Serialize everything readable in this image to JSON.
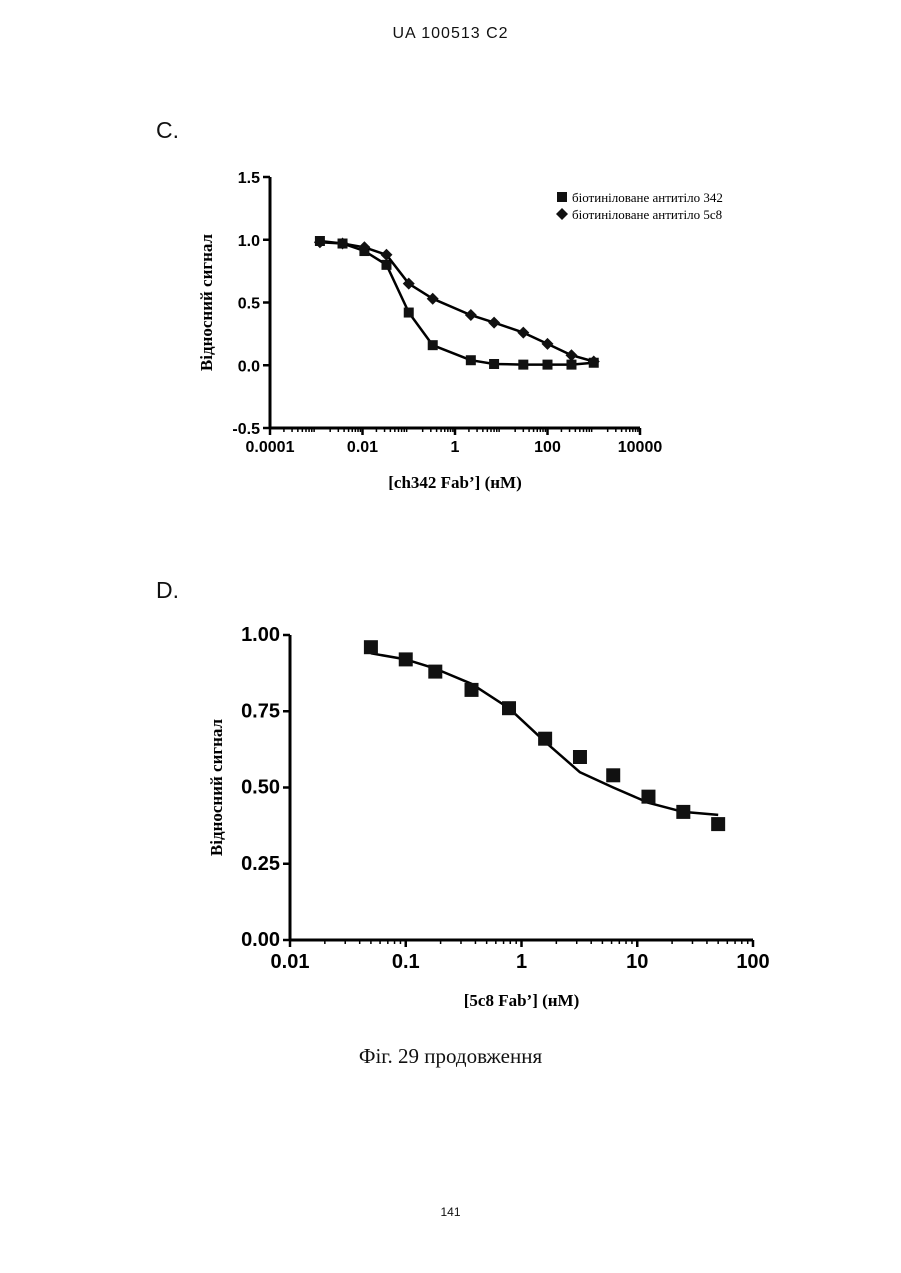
{
  "page": {
    "header": "UA   100513   C2",
    "caption": "Фіг. 29 продовження",
    "page_number": "141"
  },
  "chart_data": [
    {
      "panel": "C.",
      "type": "line",
      "x_scale": "log",
      "xlim": [
        0.0001,
        10000
      ],
      "ylim": [
        -0.5,
        1.5
      ],
      "x_ticks": [
        0.0001,
        0.01,
        1,
        100,
        10000
      ],
      "x_tick_labels": [
        "0.0001",
        "0.01",
        "1",
        "100",
        "10000"
      ],
      "y_ticks": [
        -0.5,
        0.0,
        0.5,
        1.0,
        1.5
      ],
      "y_tick_labels": [
        "-0.5",
        "0.0",
        "0.5",
        "1.0",
        "1.5"
      ],
      "xlabel": "[ch342 Fab’] (нМ)",
      "ylabel": "Відносний сигнал",
      "legend_position": "top-right",
      "series": [
        {
          "name": "біотиніловане антитіло 342",
          "marker": "square",
          "x": [
            0.0012,
            0.0037,
            0.011,
            0.033,
            0.1,
            0.33,
            2.2,
            7,
            30,
            100,
            330,
            1000
          ],
          "y": [
            0.99,
            0.97,
            0.91,
            0.8,
            0.42,
            0.16,
            0.04,
            0.01,
            0.005,
            0.005,
            0.005,
            0.02
          ]
        },
        {
          "name": "біотиніловане антитіло 5c8",
          "marker": "diamond",
          "x": [
            0.0012,
            0.0037,
            0.011,
            0.033,
            0.1,
            0.33,
            2.2,
            7,
            30,
            100,
            330,
            1000
          ],
          "y": [
            0.98,
            0.97,
            0.94,
            0.88,
            0.65,
            0.53,
            0.4,
            0.34,
            0.26,
            0.17,
            0.08,
            0.03
          ]
        }
      ]
    },
    {
      "panel": "D.",
      "type": "scatter",
      "x_scale": "log",
      "xlim": [
        0.01,
        100
      ],
      "ylim": [
        0.0,
        1.0
      ],
      "x_ticks": [
        0.01,
        0.1,
        1,
        10,
        100
      ],
      "x_tick_labels": [
        "0.01",
        "0.1",
        "1",
        "10",
        "100"
      ],
      "y_ticks": [
        0.0,
        0.25,
        0.5,
        0.75,
        1.0
      ],
      "y_tick_labels": [
        "0.00",
        "0.25",
        "0.50",
        "0.75",
        "1.00"
      ],
      "xlabel": "[5c8 Fab’] (нМ)",
      "ylabel": "Відносний сигнал",
      "series": [
        {
          "name": "",
          "marker": "square",
          "x": [
            0.05,
            0.1,
            0.18,
            0.37,
            0.78,
            1.6,
            3.2,
            6.2,
            12.5,
            25,
            50
          ],
          "y": [
            0.96,
            0.92,
            0.88,
            0.82,
            0.76,
            0.66,
            0.6,
            0.54,
            0.47,
            0.42,
            0.38
          ],
          "fit_y": [
            0.94,
            0.92,
            0.89,
            0.84,
            0.76,
            0.65,
            0.55,
            0.5,
            0.45,
            0.42,
            0.41
          ]
        }
      ]
    }
  ]
}
